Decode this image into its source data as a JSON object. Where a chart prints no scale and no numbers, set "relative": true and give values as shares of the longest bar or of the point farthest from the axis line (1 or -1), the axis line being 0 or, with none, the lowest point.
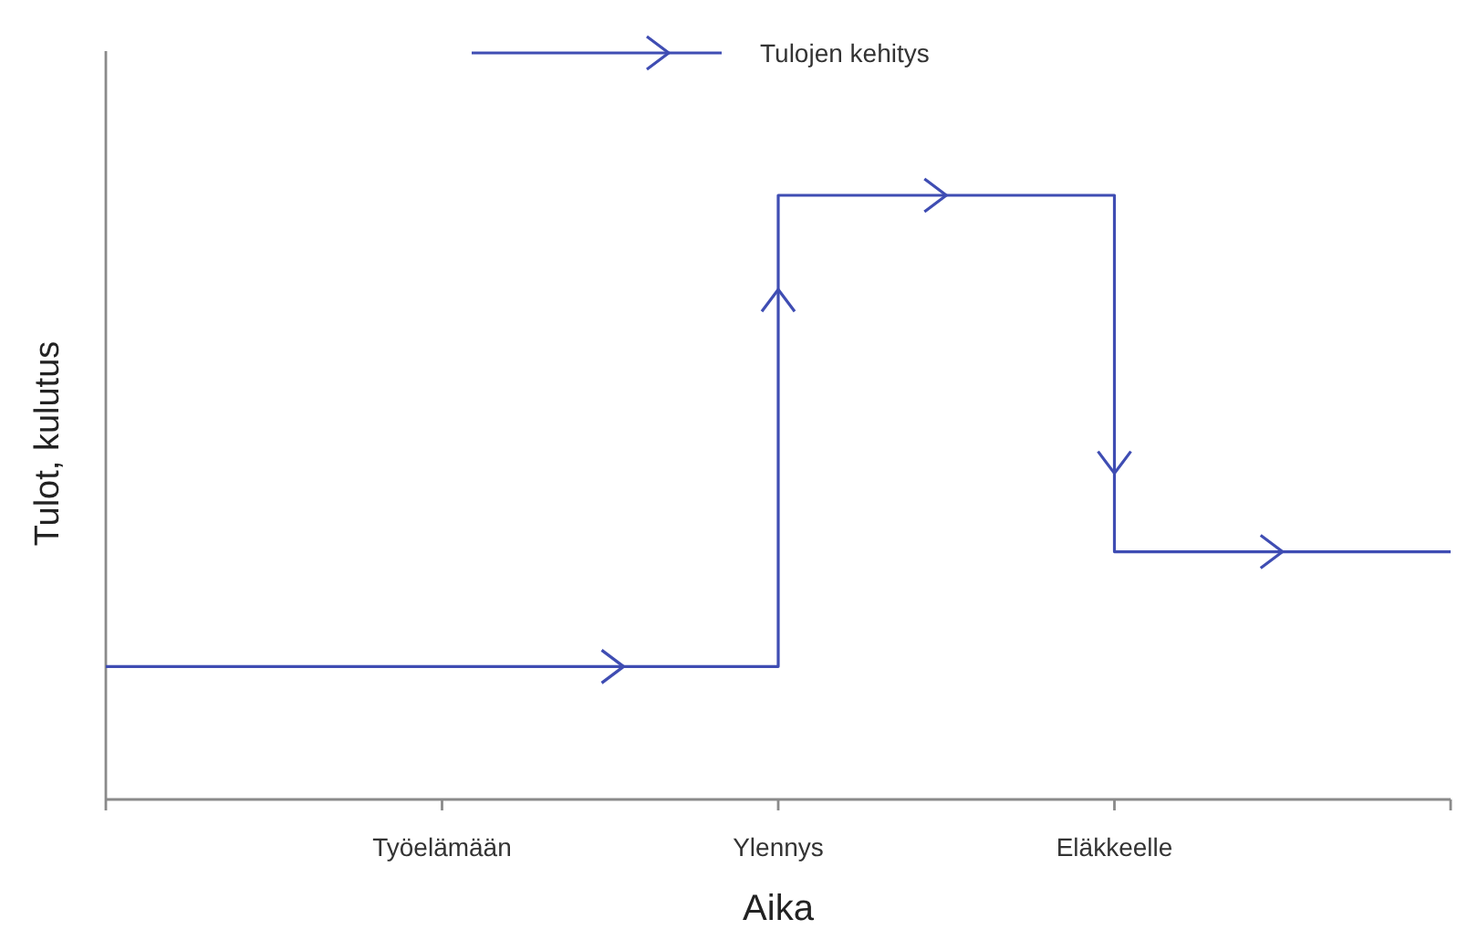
{
  "chart_data": {
    "type": "step",
    "categories": [
      null,
      "Työelämään",
      "Ylennys",
      "Eläkkeelle",
      null
    ],
    "series": [
      {
        "name": "Tulojen kehitys",
        "color": "#3f4db3",
        "values": [
          0.22,
          0.22,
          1,
          0.41,
          0.41
        ]
      }
    ],
    "relative": true,
    "tick_labels": "x",
    "legend": "top",
    "xlabel": "Aika",
    "ylabel": "Tulot, kulutus"
  }
}
